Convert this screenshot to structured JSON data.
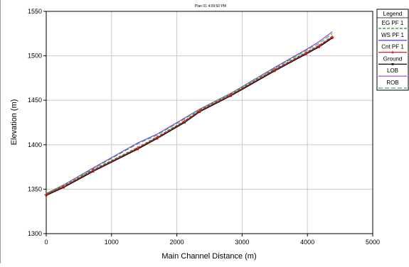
{
  "chart_data": {
    "type": "line",
    "title": "Plan 01    4:09:50 PM",
    "xlabel": "Main Channel Distance (m)",
    "ylabel": "Elevation (m)",
    "xlim": [
      0,
      5000
    ],
    "ylim": [
      1300,
      1550
    ],
    "xticks": [
      "0",
      "1000",
      "2000",
      "3000",
      "4000",
      "5000"
    ],
    "yticks": [
      "1300",
      "1350",
      "1400",
      "1450",
      "1500",
      "1550"
    ],
    "grid": true,
    "legend": {
      "title": "Legend",
      "placement": "right"
    },
    "series": [
      {
        "name": "EG  PF 1",
        "color": "#1f8f2a",
        "dash": "4,2",
        "marker": "none",
        "x": [
          0,
          270,
          720,
          1400,
          1700,
          2120,
          2350,
          2830,
          3500,
          3980,
          4180,
          4380
        ],
        "y": [
          1345,
          1354,
          1372,
          1397,
          1409,
          1427,
          1439,
          1457,
          1485,
          1504,
          1512,
          1522
        ]
      },
      {
        "name": "WS  PF 1",
        "color": "#2b2bd4",
        "dash": "",
        "marker": "none",
        "x": [
          0,
          270,
          720,
          1400,
          1700,
          2120,
          2350,
          2830,
          3500,
          3980,
          4180,
          4380
        ],
        "y": [
          1344,
          1353,
          1371,
          1396,
          1408,
          1426,
          1438,
          1456,
          1484,
          1503,
          1511,
          1521
        ]
      },
      {
        "name": "Crit  PF 1",
        "color": "#d42020",
        "dash": "",
        "marker": "plus",
        "x": [
          0,
          270,
          720,
          1400,
          1700,
          2120,
          2350,
          2830,
          3500,
          3980,
          4180,
          4380
        ],
        "y": [
          1344,
          1353,
          1371,
          1396,
          1408,
          1426,
          1438,
          1456,
          1484,
          1503,
          1511,
          1521
        ]
      },
      {
        "name": "Ground",
        "color": "#000000",
        "dash": "",
        "marker": "square",
        "x": [
          0,
          270,
          720,
          1400,
          1700,
          2120,
          2350,
          2830,
          3500,
          3980,
          4180,
          4380
        ],
        "y": [
          1343,
          1352,
          1370,
          1395,
          1407,
          1425,
          1437,
          1455,
          1483,
          1502,
          1510,
          1520
        ]
      },
      {
        "name": "LOB",
        "color": "#9a3fc0",
        "dash": "",
        "marker": "none",
        "x": [
          0,
          270,
          720,
          1400,
          1700,
          2120,
          2350,
          2830,
          3500,
          3980,
          4180,
          4380
        ],
        "y": [
          1345,
          1355,
          1374,
          1402,
          1412,
          1430,
          1440,
          1458,
          1487,
          1507,
          1516,
          1527
        ]
      },
      {
        "name": "ROB",
        "color": "#2aa5a5",
        "dash": "6,3",
        "marker": "none",
        "x": [
          0,
          270,
          720,
          1400,
          1700,
          2120,
          2350,
          2830,
          3500,
          3980,
          4180,
          4380
        ],
        "y": [
          1345,
          1355,
          1373,
          1401,
          1411,
          1429,
          1440,
          1458,
          1486,
          1506,
          1514,
          1525
        ]
      }
    ]
  }
}
